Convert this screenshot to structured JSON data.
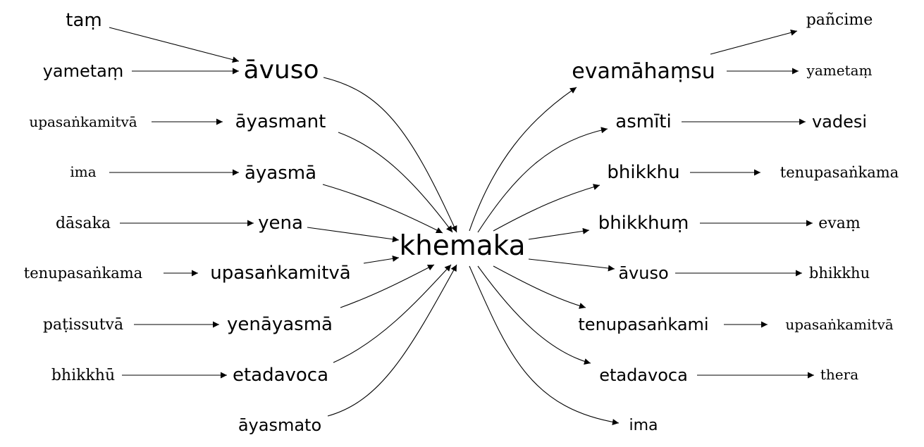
{
  "graph": {
    "center": "khemaka",
    "left_inner": [
      "āvuso",
      "āyasmant",
      "āyasmā",
      "yena",
      "upasaṅkamitvā",
      "yenāyasmā",
      "etadavoca",
      "āyasmato"
    ],
    "left_outer": [
      "taṃ",
      "yametaṃ",
      "upasaṅkamitvā",
      "ima",
      "dāsaka",
      "tenupasaṅkama",
      "paṭissutvā",
      "bhikkhū"
    ],
    "right_inner": [
      "evamāhaṃsu",
      "asmīti",
      "bhikkhu",
      "bhikkhuṃ",
      "āvuso",
      "tenupasaṅkami",
      "etadavoca",
      "ima"
    ],
    "right_outer": [
      "pañcime",
      "yametaṃ",
      "vadesi",
      "tenupasaṅkama",
      "evaṃ",
      "bhikkhu",
      "upasaṅkamitvā",
      "thera"
    ]
  }
}
